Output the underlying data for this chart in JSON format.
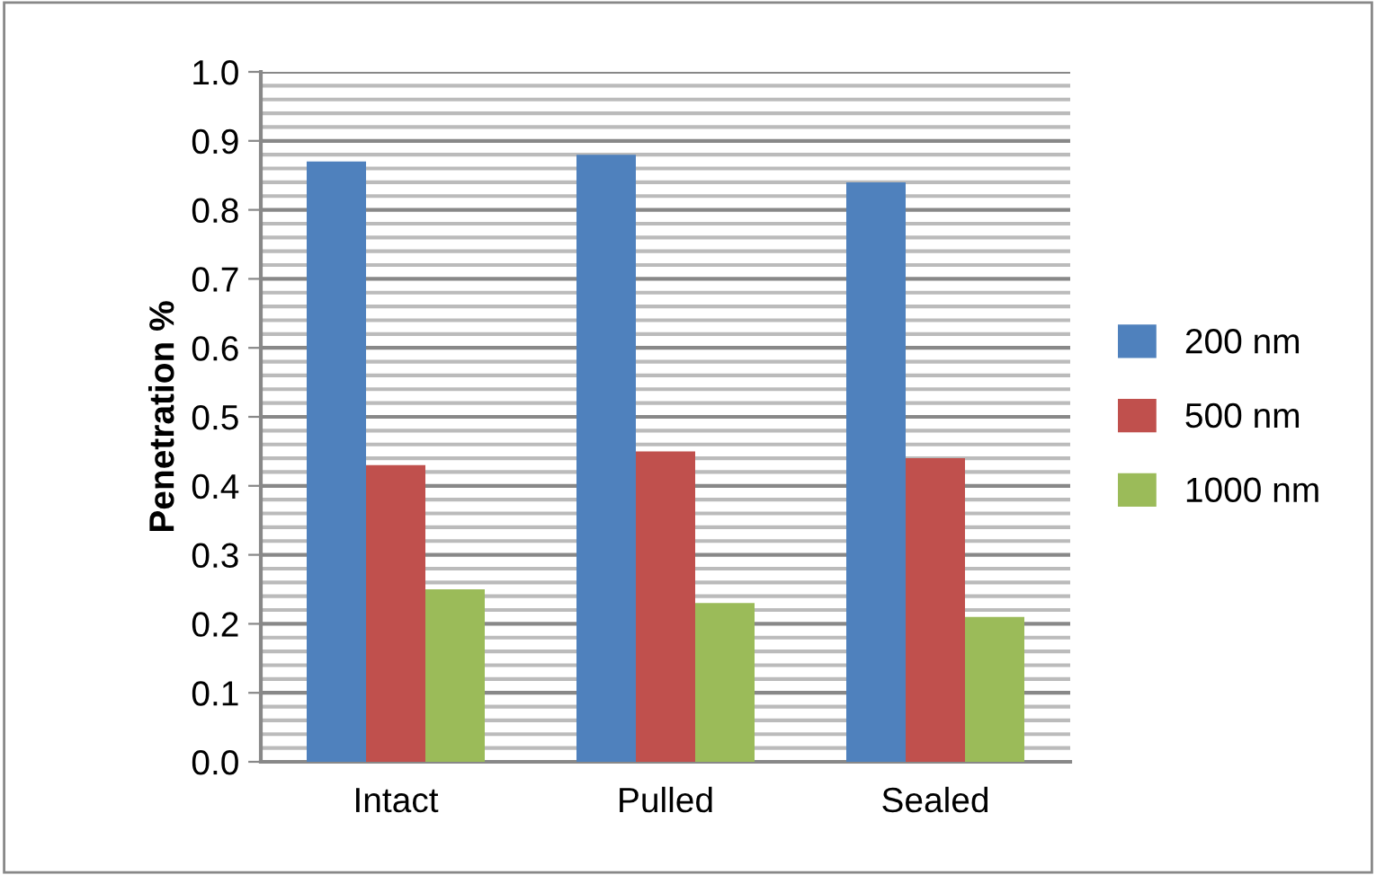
{
  "chart_data": {
    "type": "bar",
    "ylabel": "Penetration %",
    "categories": [
      "Intact",
      "Pulled",
      "Sealed"
    ],
    "series": [
      {
        "name": "200 nm",
        "color": "#4f81bd",
        "values": [
          0.87,
          0.88,
          0.84
        ]
      },
      {
        "name": "500 nm",
        "color": "#c0504d",
        "values": [
          0.43,
          0.45,
          0.44
        ]
      },
      {
        "name": "1000 nm",
        "color": "#9bbb59",
        "values": [
          0.25,
          0.23,
          0.21
        ]
      }
    ],
    "ylim": [
      0,
      1.0
    ],
    "yticks": [
      {
        "value": 0,
        "label": "0.0"
      },
      {
        "value": 0.02,
        "label": null
      },
      {
        "value": 0.04,
        "label": null
      },
      {
        "value": 0.06,
        "label": null
      },
      {
        "value": 0.08,
        "label": null
      },
      {
        "value": 0.1,
        "label": "0.1"
      },
      {
        "value": 0.12,
        "label": null
      },
      {
        "value": 0.14,
        "label": null
      },
      {
        "value": 0.16,
        "label": null
      },
      {
        "value": 0.18,
        "label": null
      },
      {
        "value": 0.2,
        "label": "0.2"
      },
      {
        "value": 0.22,
        "label": null
      },
      {
        "value": 0.24,
        "label": null
      },
      {
        "value": 0.26,
        "label": null
      },
      {
        "value": 0.28,
        "label": null
      },
      {
        "value": 0.3,
        "label": "0.3"
      },
      {
        "value": 0.32,
        "label": null
      },
      {
        "value": 0.34,
        "label": null
      },
      {
        "value": 0.36,
        "label": null
      },
      {
        "value": 0.38,
        "label": null
      },
      {
        "value": 0.4,
        "label": "0.4"
      },
      {
        "value": 0.42,
        "label": null
      },
      {
        "value": 0.44,
        "label": null
      },
      {
        "value": 0.46,
        "label": null
      },
      {
        "value": 0.48,
        "label": null
      },
      {
        "value": 0.5,
        "label": "0.5"
      },
      {
        "value": 0.52,
        "label": null
      },
      {
        "value": 0.54,
        "label": null
      },
      {
        "value": 0.56,
        "label": null
      },
      {
        "value": 0.58,
        "label": null
      },
      {
        "value": 0.6,
        "label": "0.6"
      },
      {
        "value": 0.62,
        "label": null
      },
      {
        "value": 0.64,
        "label": null
      },
      {
        "value": 0.66,
        "label": null
      },
      {
        "value": 0.68,
        "label": null
      },
      {
        "value": 0.7,
        "label": "0.7"
      },
      {
        "value": 0.72,
        "label": null
      },
      {
        "value": 0.74,
        "label": null
      },
      {
        "value": 0.76,
        "label": null
      },
      {
        "value": 0.78,
        "label": null
      },
      {
        "value": 0.8,
        "label": "0.8"
      },
      {
        "value": 0.82,
        "label": null
      },
      {
        "value": 0.84,
        "label": null
      },
      {
        "value": 0.86,
        "label": null
      },
      {
        "value": 0.88,
        "label": null
      },
      {
        "value": 0.9,
        "label": "0.9"
      },
      {
        "value": 0.92,
        "label": null
      },
      {
        "value": 0.94,
        "label": null
      },
      {
        "value": 0.96,
        "label": null
      },
      {
        "value": 0.98,
        "label": null
      },
      {
        "value": 1.0,
        "label": "1.0"
      }
    ],
    "grid": "y",
    "legend": "right"
  }
}
